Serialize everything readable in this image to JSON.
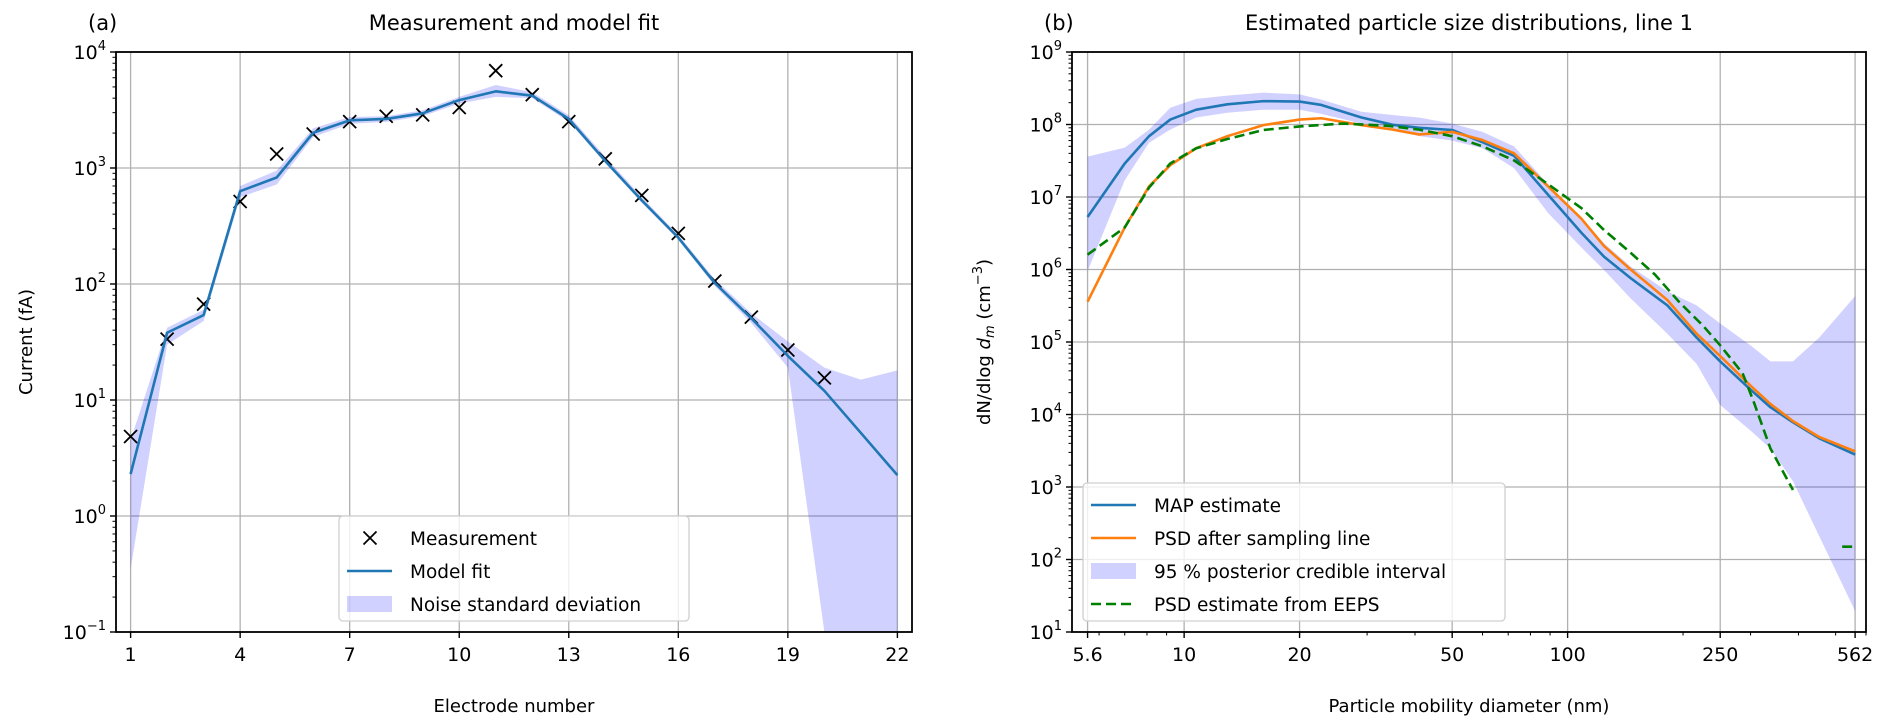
{
  "colors": {
    "map": "#1f77b4",
    "orange": "#ff7f0e",
    "eeps": "#008000",
    "band": "rgba(0,0,255,0.18)",
    "grid": "#b0b0b0"
  },
  "chart_data": [
    {
      "type": "line",
      "panel": "(a)",
      "title": "Measurement and model fit",
      "xlabel": "Electrode number",
      "ylabel": "Current (fA)",
      "yscale": "log",
      "xlim": [
        0.6,
        22.4
      ],
      "ylim": [
        0.1,
        10000
      ],
      "grid": true,
      "legend_position": "bottom-center",
      "xticks": [
        {
          "v": 1,
          "label": "1"
        },
        {
          "v": 4,
          "label": "4"
        },
        {
          "v": 7,
          "label": "7"
        },
        {
          "v": 10,
          "label": "10"
        },
        {
          "v": 13,
          "label": "13"
        },
        {
          "v": 16,
          "label": "16"
        },
        {
          "v": 19,
          "label": "19"
        },
        {
          "v": 22,
          "label": "22"
        }
      ],
      "yticks": [
        {
          "v": 0.1,
          "base": "10",
          "exp": "−1"
        },
        {
          "v": 1,
          "base": "10",
          "exp": "0"
        },
        {
          "v": 10,
          "base": "10",
          "exp": "1"
        },
        {
          "v": 100,
          "base": "10",
          "exp": "2"
        },
        {
          "v": 1000,
          "base": "10",
          "exp": "3"
        },
        {
          "v": 10000,
          "base": "10",
          "exp": "4"
        }
      ],
      "x": [
        1,
        2,
        3,
        4,
        5,
        6,
        7,
        8,
        9,
        10,
        11,
        12,
        13,
        14,
        15,
        16,
        17,
        18,
        19,
        20,
        21,
        22
      ],
      "series": [
        {
          "name": "Measurement",
          "kind": "marker",
          "values": [
            4.85,
            33.5,
            67,
            514,
            1321,
            1963,
            2512,
            2795,
            2868,
            3320,
            6900,
            4285,
            2512,
            1200,
            581,
            273,
            106,
            51.8,
            27,
            15.5,
            null,
            null
          ]
        },
        {
          "name": "Model fit",
          "kind": "line",
          "values": [
            2.3,
            38,
            54,
            631,
            828,
            2013,
            2575,
            2650,
            2960,
            3850,
            4580,
            4200,
            2650,
            1150,
            526,
            251,
            102,
            50.6,
            24,
            12,
            5.2,
            2.25
          ]
        },
        {
          "name": "Noise standard deviation",
          "kind": "band",
          "lower": [
            0.35,
            30,
            48,
            560,
            720,
            1850,
            2400,
            2500,
            2800,
            3600,
            4100,
            4000,
            2500,
            1100,
            500,
            240,
            96,
            46,
            19,
            0.1,
            0.1,
            0.1
          ],
          "upper": [
            4.5,
            42,
            60,
            700,
            950,
            2200,
            2750,
            2800,
            3150,
            4100,
            5200,
            4500,
            2850,
            1250,
            560,
            265,
            110,
            56,
            32,
            19,
            15,
            18
          ]
        }
      ]
    },
    {
      "type": "line",
      "panel": "(b)",
      "title": "Estimated particle size distributions, line 1",
      "xlabel": "Particle mobility diameter (nm)",
      "ylabel_parts": [
        "dN/dlog ",
        "d",
        "m",
        " (cm",
        "−3",
        ")"
      ],
      "xscale": "log",
      "yscale": "log",
      "xlim": [
        5.1,
        600
      ],
      "ylim": [
        10,
        1000000000
      ],
      "grid": true,
      "legend_position": "bottom-left",
      "xticks": [
        {
          "v": 5.6,
          "label": "5.6"
        },
        {
          "v": 10,
          "label": "10"
        },
        {
          "v": 20,
          "label": "20"
        },
        {
          "v": 50,
          "label": "50"
        },
        {
          "v": 100,
          "label": "100"
        },
        {
          "v": 250,
          "label": "250"
        },
        {
          "v": 562,
          "label": "562"
        }
      ],
      "yticks": [
        {
          "v": 10,
          "base": "10",
          "exp": "1"
        },
        {
          "v": 100,
          "base": "10",
          "exp": "2"
        },
        {
          "v": 1000,
          "base": "10",
          "exp": "3"
        },
        {
          "v": 10000,
          "base": "10",
          "exp": "4"
        },
        {
          "v": 100000,
          "base": "10",
          "exp": "5"
        },
        {
          "v": 1000000,
          "base": "10",
          "exp": "6"
        },
        {
          "v": 10000000,
          "base": "10",
          "exp": "7"
        },
        {
          "v": 100000000,
          "base": "10",
          "exp": "8"
        },
        {
          "v": 1000000000,
          "base": "10",
          "exp": "9"
        }
      ],
      "x": [
        5.6,
        7,
        8.1,
        9.2,
        10.75,
        12.96,
        16.1,
        20,
        22.8,
        29,
        35,
        41,
        50,
        60,
        72.5,
        89,
        108.7,
        124.5,
        146,
        182,
        217,
        250,
        300,
        338,
        387,
        453,
        562
      ],
      "series": [
        {
          "name": "MAP estimate",
          "kind": "line",
          "color": "map",
          "values": [
            5300000.0,
            29000000.0,
            69000000.0,
            117000000.0,
            160000000.0,
            190000000.0,
            210000000.0,
            207000000.0,
            186000000.0,
            125000000.0,
            99000000.0,
            90000000.0,
            84000000.0,
            57000000.0,
            37000000.0,
            10700000.0,
            3200000.0,
            1500000.0,
            760000.0,
            320000.0,
            115000.0,
            54000.0,
            22000.0,
            12600.0,
            7800.0,
            4700.0,
            2800.0
          ]
        },
        {
          "name": "PSD after sampling line",
          "kind": "line",
          "color": "orange",
          "values": [
            360000.0,
            3800000.0,
            14000000.0,
            27500000.0,
            47000000.0,
            69000000.0,
            98000000.0,
            117000000.0,
            122000000.0,
            98000000.0,
            85000000.0,
            73000000.0,
            79000000.0,
            61000000.0,
            40000000.0,
            14000000.0,
            5000000.0,
            2100000.0,
            1000000.0,
            380000.0,
            130000.0,
            64000.0,
            25000.0,
            14000.0,
            8100.0,
            4900.0,
            3100.0
          ]
        },
        {
          "name": "95 % posterior credible interval",
          "kind": "band",
          "lower": [
            950000.0,
            17000000.0,
            56000000.0,
            85000000.0,
            125000000.0,
            145000000.0,
            160000000.0,
            160000000.0,
            140000000.0,
            103000000.0,
            85000000.0,
            69000000.0,
            60000000.0,
            47000000.0,
            25000000.0,
            6000000.0,
            2000000.0,
            980000.0,
            400000.0,
            130000.0,
            50000.0,
            13500.0,
            6000.0,
            3400.0,
            1200.0,
            210,
            19.5
          ],
          "upper": [
            36000000.0,
            48000000.0,
            85000000.0,
            170000000.0,
            226000000.0,
            250000000.0,
            275000000.0,
            260000000.0,
            220000000.0,
            150000000.0,
            135000000.0,
            125000000.0,
            103000000.0,
            79000000.0,
            50000000.0,
            15000000.0,
            5000000.0,
            2300000.0,
            1100000.0,
            500000.0,
            320000.0,
            180000.0,
            90000.0,
            54000.0,
            54000.0,
            115000.0,
            430000.0
          ]
        },
        {
          "name": "PSD estimate from EEPS",
          "kind": "dashed",
          "color": "eeps",
          "x": [
            5.6,
            7,
            8.1,
            9.2,
            10.75,
            12.96,
            16.1,
            20,
            26,
            34,
            41,
            50,
            60,
            72.5,
            89,
            108.7,
            124.5,
            146,
            169,
            196,
            225,
            250,
            286,
            305,
            338,
            387,
            null,
            520,
            562
          ],
          "values": [
            1600000.0,
            3800000.0,
            13500000.0,
            29000000.0,
            47000000.0,
            63000000.0,
            84000000.0,
            94000000.0,
            103000000.0,
            96000000.0,
            85000000.0,
            69000000.0,
            50000000.0,
            32000000.0,
            15000000.0,
            7000000.0,
            3500000.0,
            1700000.0,
            850000.0,
            350000.0,
            170000.0,
            90000.0,
            37000.0,
            15500.0,
            3400.0,
            910,
            null,
            150,
            150
          ]
        }
      ]
    }
  ]
}
